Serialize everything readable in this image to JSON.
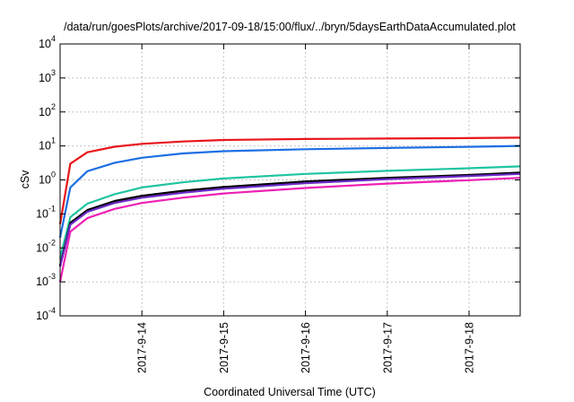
{
  "chart_data": {
    "type": "line",
    "title": "/data/run/goesPlots/archive/2017-09-18/15:00/flux/../bryn/5daysEarthDataAccumulated.plot",
    "xlabel": "Coordinated Universal Time (UTC)",
    "ylabel": "cSv",
    "x_range": [
      "2017-09-13 00:00",
      "2017-09-18 15:00"
    ],
    "x_ticks": [
      "2017-9-14",
      "2017-9-15",
      "2017-9-16",
      "2017-9-17",
      "2017-9-18"
    ],
    "y_scale": "log",
    "y_range": [
      0.0001,
      10000
    ],
    "y_ticks": [
      {
        "base": "10",
        "exp": "-4"
      },
      {
        "base": "10",
        "exp": "-3"
      },
      {
        "base": "10",
        "exp": "-2"
      },
      {
        "base": "10",
        "exp": "-1"
      },
      {
        "base": "10",
        "exp": "0"
      },
      {
        "base": "10",
        "exp": "1"
      },
      {
        "base": "10",
        "exp": "2"
      },
      {
        "base": "10",
        "exp": "3"
      },
      {
        "base": "10",
        "exp": "4"
      }
    ],
    "grid": true,
    "series": [
      {
        "color": "#e8161b",
        "x": [
          "2017-09-13 00:00",
          "2017-09-13 03:00",
          "2017-09-13 08:00",
          "2017-09-13 16:00",
          "2017-09-14 00:00",
          "2017-09-14 12:00",
          "2017-09-15 00:00",
          "2017-09-16 00:00",
          "2017-09-17 00:00",
          "2017-09-18 00:00",
          "2017-09-18 15:00"
        ],
        "y": [
          0.05,
          3.0,
          6.5,
          9.5,
          11.5,
          13.5,
          15,
          16,
          16.5,
          17,
          17.5
        ]
      },
      {
        "color": "#1c6fe3",
        "x": [
          "2017-09-13 00:00",
          "2017-09-13 03:00",
          "2017-09-13 08:00",
          "2017-09-13 16:00",
          "2017-09-14 00:00",
          "2017-09-14 12:00",
          "2017-09-15 00:00",
          "2017-09-16 00:00",
          "2017-09-17 00:00",
          "2017-09-18 00:00",
          "2017-09-18 15:00"
        ],
        "y": [
          0.02,
          0.6,
          1.8,
          3.2,
          4.5,
          6.0,
          7.0,
          8.0,
          8.7,
          9.4,
          10
        ]
      },
      {
        "color": "#20c4a0",
        "x": [
          "2017-09-13 00:00",
          "2017-09-13 03:00",
          "2017-09-13 08:00",
          "2017-09-13 16:00",
          "2017-09-14 00:00",
          "2017-09-14 12:00",
          "2017-09-15 00:00",
          "2017-09-16 00:00",
          "2017-09-17 00:00",
          "2017-09-18 00:00",
          "2017-09-18 15:00"
        ],
        "y": [
          0.005,
          0.08,
          0.2,
          0.38,
          0.6,
          0.85,
          1.1,
          1.5,
          1.85,
          2.2,
          2.5
        ]
      },
      {
        "color": "#e0b000",
        "x": [
          "2017-09-13 00:00",
          "2017-09-13 03:00",
          "2017-09-13 08:00",
          "2017-09-13 16:00",
          "2017-09-14 00:00",
          "2017-09-14 12:00",
          "2017-09-15 00:00",
          "2017-09-16 00:00",
          "2017-09-17 00:00",
          "2017-09-18 00:00",
          "2017-09-18 15:00"
        ],
        "y": [
          0.003,
          0.05,
          0.12,
          0.22,
          0.32,
          0.45,
          0.58,
          0.85,
          1.1,
          1.35,
          1.55
        ]
      },
      {
        "color": "#000000",
        "x": [
          "2017-09-13 00:00",
          "2017-09-13 03:00",
          "2017-09-13 08:00",
          "2017-09-13 16:00",
          "2017-09-14 00:00",
          "2017-09-14 12:00",
          "2017-09-15 00:00",
          "2017-09-16 00:00",
          "2017-09-17 00:00",
          "2017-09-18 00:00",
          "2017-09-18 15:00"
        ],
        "y": [
          0.003,
          0.055,
          0.13,
          0.24,
          0.34,
          0.48,
          0.62,
          0.9,
          1.15,
          1.4,
          1.65
        ]
      },
      {
        "color": "#6a2ac8",
        "x": [
          "2017-09-13 00:00",
          "2017-09-13 03:00",
          "2017-09-13 08:00",
          "2017-09-13 16:00",
          "2017-09-14 00:00",
          "2017-09-14 12:00",
          "2017-09-15 00:00",
          "2017-09-16 00:00",
          "2017-09-17 00:00",
          "2017-09-18 00:00",
          "2017-09-18 15:00"
        ],
        "y": [
          0.0028,
          0.048,
          0.115,
          0.21,
          0.3,
          0.42,
          0.55,
          0.8,
          1.05,
          1.3,
          1.5
        ]
      },
      {
        "color": "#ee1fb4",
        "x": [
          "2017-09-13 00:00",
          "2017-09-13 03:00",
          "2017-09-13 08:00",
          "2017-09-13 16:00",
          "2017-09-14 00:00",
          "2017-09-14 12:00",
          "2017-09-15 00:00",
          "2017-09-16 00:00",
          "2017-09-17 00:00",
          "2017-09-18 00:00",
          "2017-09-18 15:00"
        ],
        "y": [
          0.001,
          0.03,
          0.075,
          0.14,
          0.21,
          0.3,
          0.4,
          0.58,
          0.78,
          0.98,
          1.15
        ]
      }
    ]
  }
}
